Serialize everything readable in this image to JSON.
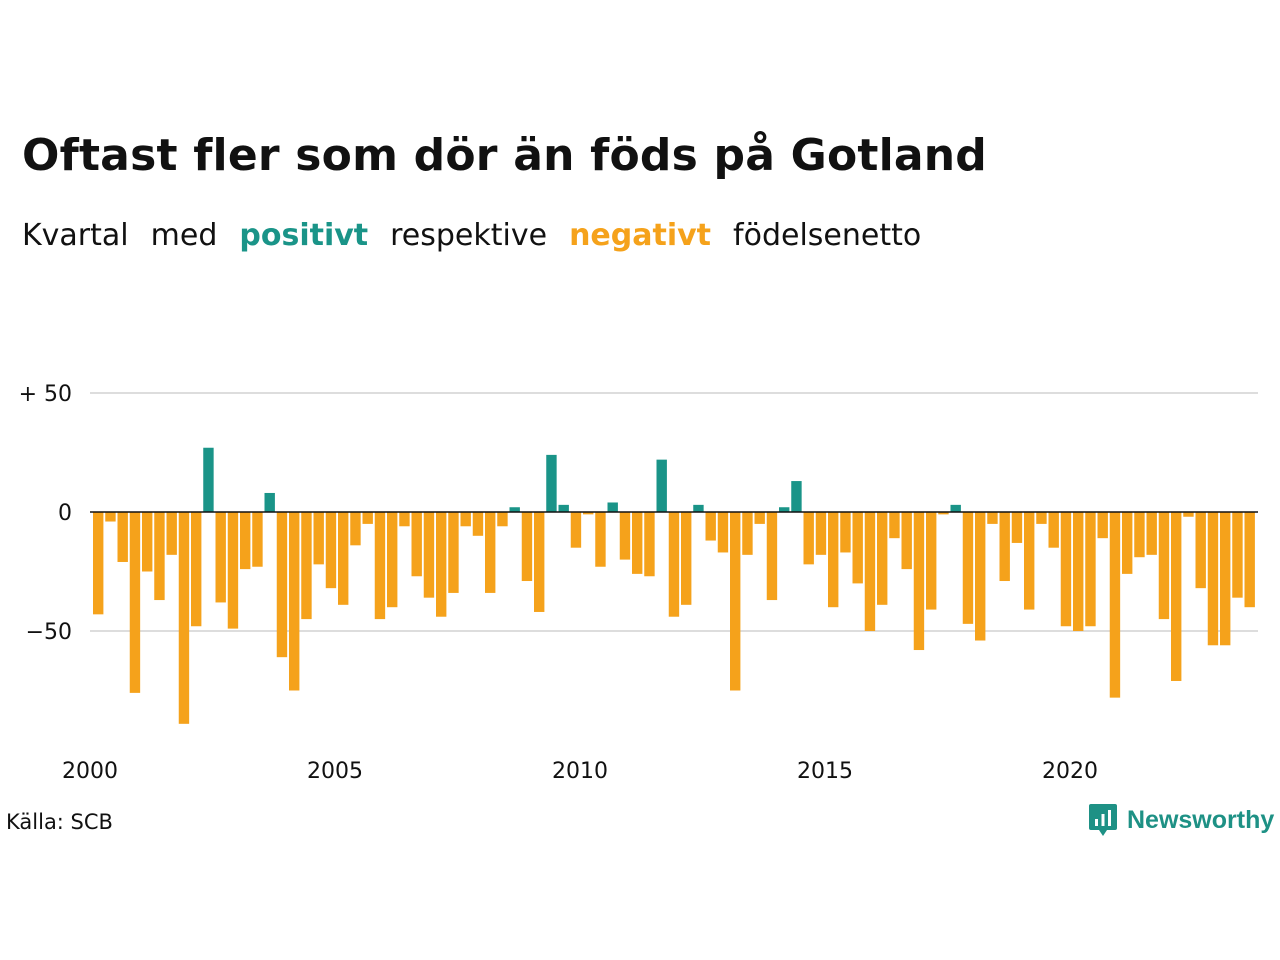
{
  "header": {
    "title": "Oftast fler som dör än föds på Gotland",
    "subtitle_parts": [
      "Kvartal",
      "med",
      "positivt",
      "respektive",
      "negativt",
      "födelsenetto"
    ]
  },
  "footer": {
    "source": "Källa: SCB",
    "brand": "Newsworthy",
    "brand_icon": "bar-chart-speech-bubble-icon"
  },
  "colors": {
    "positive": "#1a9488",
    "negative": "#f5a21b",
    "grid": "#dddddd",
    "zero_line": "#111111",
    "text": "#111111"
  },
  "chart_data": {
    "type": "bar",
    "title": "Oftast fler som dör än föds på Gotland",
    "x_start": "2000 Q1",
    "frequency": "quarterly",
    "x_tick_labels": [
      "2000",
      "2005",
      "2010",
      "2015",
      "2020"
    ],
    "y_tick_labels": [
      "+ 50",
      "0",
      "−50"
    ],
    "y_ticks": [
      50,
      0,
      -50
    ],
    "ylim": [
      -90,
      50
    ],
    "grid": true,
    "values": [
      -43,
      -4,
      -21,
      -76,
      -25,
      -37,
      -18,
      -89,
      -48,
      27,
      -38,
      -49,
      -24,
      -23,
      8,
      -61,
      -75,
      -45,
      -22,
      -32,
      -39,
      -14,
      -5,
      -45,
      -40,
      -6,
      -27,
      -36,
      -44,
      -34,
      -6,
      -10,
      -34,
      -6,
      2,
      -29,
      -42,
      24,
      3,
      -15,
      -1,
      -23,
      4,
      -20,
      -26,
      -27,
      22,
      -44,
      -39,
      3,
      -12,
      -17,
      -75,
      -18,
      -5,
      -37,
      2,
      13,
      -22,
      -18,
      -40,
      -17,
      -30,
      -50,
      -39,
      -11,
      -24,
      -58,
      -41,
      -1,
      3,
      -47,
      -54,
      -5,
      -29,
      -13,
      -41,
      -5,
      -15,
      -48,
      -50,
      -48,
      -11,
      -78,
      -26,
      -19,
      -18,
      -45,
      -71,
      -2,
      -32,
      -56,
      -56,
      -36,
      -40
    ]
  }
}
